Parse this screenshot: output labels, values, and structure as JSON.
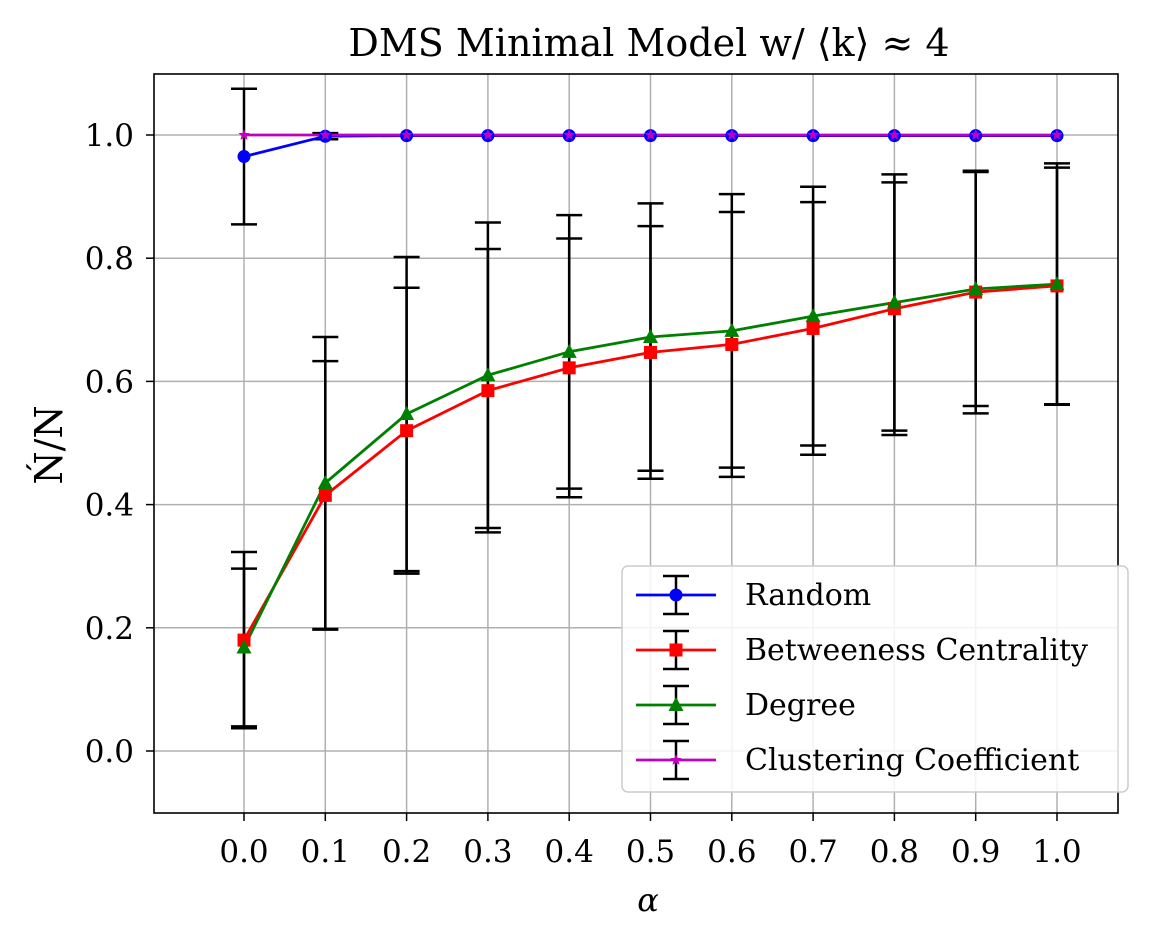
{
  "chart_data": {
    "type": "line",
    "title": "DMS Minimal Model w/ ⟨k⟩ ≈ 4",
    "xlabel": "α",
    "ylabel": "Ń/N",
    "x": [
      0.0,
      0.1,
      0.2,
      0.3,
      0.4,
      0.5,
      0.6,
      0.7,
      0.8,
      0.9,
      1.0
    ],
    "x_tick_labels": [
      "0.0",
      "0.1",
      "0.2",
      "0.3",
      "0.4",
      "0.5",
      "0.6",
      "0.7",
      "0.8",
      "0.9",
      "1.0"
    ],
    "y_ticks": [
      0.0,
      0.2,
      0.4,
      0.6,
      0.8,
      1.0
    ],
    "y_tick_labels": [
      "0.0",
      "0.2",
      "0.4",
      "0.6",
      "0.8",
      "1.0"
    ],
    "xlim": [
      -0.11,
      1.11
    ],
    "ylim": [
      -0.1,
      1.1
    ],
    "grid": true,
    "legend_position": "lower-right",
    "series": [
      {
        "name": "Random",
        "color": "#0000ff",
        "marker": "circle",
        "values": [
          0.965,
          0.998,
          0.999,
          0.999,
          0.999,
          0.999,
          0.999,
          0.999,
          0.999,
          0.999,
          0.999
        ],
        "errors": [
          0.11,
          0.005,
          0.0,
          0.0,
          0.0,
          0.0,
          0.0,
          0.0,
          0.0,
          0.0,
          0.0
        ]
      },
      {
        "name": "Betweeness Centrality",
        "color": "#ff0000",
        "marker": "square",
        "values": [
          0.18,
          0.415,
          0.52,
          0.585,
          0.622,
          0.647,
          0.66,
          0.686,
          0.718,
          0.745,
          0.755
        ],
        "errors": [
          0.143,
          0.218,
          0.232,
          0.23,
          0.21,
          0.205,
          0.215,
          0.205,
          0.205,
          0.197,
          0.192
        ]
      },
      {
        "name": "Degree",
        "color": "#008000",
        "marker": "triangle",
        "values": [
          0.168,
          0.435,
          0.547,
          0.61,
          0.648,
          0.672,
          0.682,
          0.706,
          0.728,
          0.75,
          0.758
        ],
        "errors": [
          0.128,
          0.237,
          0.255,
          0.248,
          0.222,
          0.217,
          0.222,
          0.21,
          0.208,
          0.19,
          0.196
        ]
      },
      {
        "name": "Clustering Coefficient",
        "color": "#bf00bf",
        "marker": "star",
        "values": [
          1.0,
          1.0,
          1.0,
          1.0,
          1.0,
          1.0,
          1.0,
          1.0,
          1.0,
          1.0,
          1.0
        ],
        "errors": [
          0.0,
          0.0,
          0.0,
          0.0,
          0.0,
          0.0,
          0.0,
          0.0,
          0.0,
          0.0,
          0.0
        ]
      }
    ]
  }
}
